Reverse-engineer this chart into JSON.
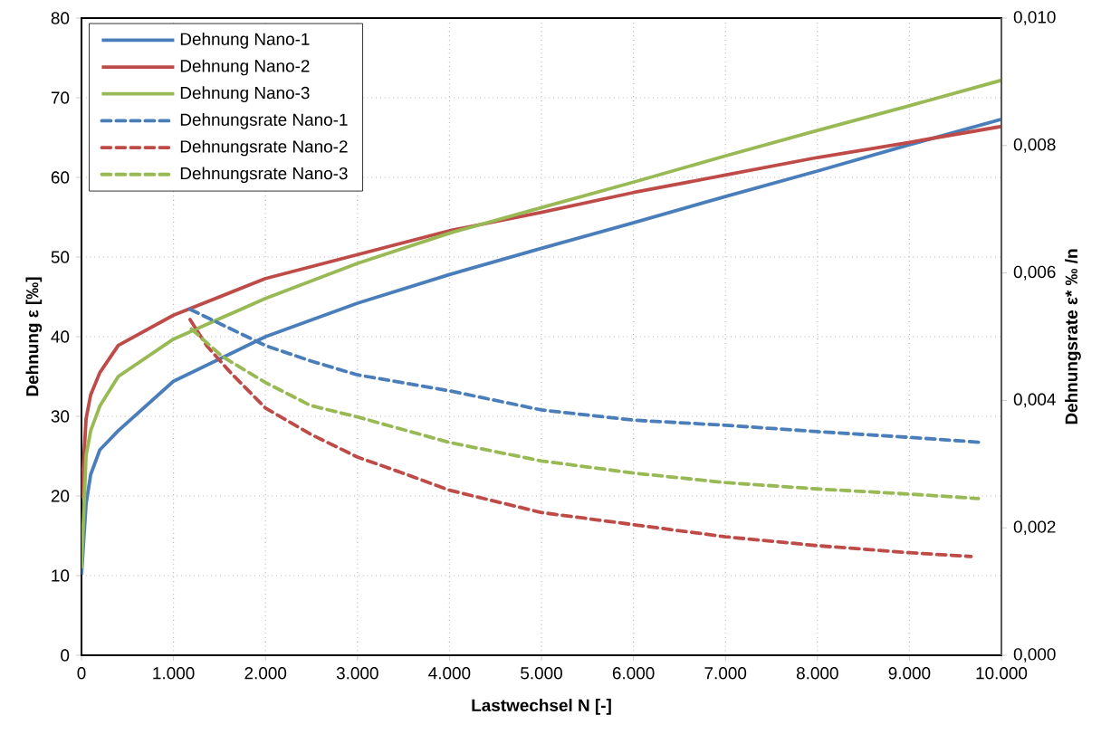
{
  "chart_data": {
    "type": "line",
    "xlabel": "Lastwechsel N [-]",
    "ylabel": "Dehnung ε [‰]",
    "y2label": "Dehnungsrate ε* ‰ /n",
    "xlim": [
      0,
      10000
    ],
    "xticks": [
      {
        "value": 0,
        "label": "0"
      },
      {
        "value": 1000,
        "label": "1.000"
      },
      {
        "value": 2000,
        "label": "2.000"
      },
      {
        "value": 3000,
        "label": "3.000"
      },
      {
        "value": 4000,
        "label": "4.000"
      },
      {
        "value": 5000,
        "label": "5.000"
      },
      {
        "value": 6000,
        "label": "6.000"
      },
      {
        "value": 7000,
        "label": "7.000"
      },
      {
        "value": 8000,
        "label": "8.000"
      },
      {
        "value": 9000,
        "label": "9.000"
      },
      {
        "value": 10000,
        "label": "10.000"
      }
    ],
    "ylim": [
      0,
      80
    ],
    "yticks": [
      0,
      10,
      20,
      30,
      40,
      50,
      60,
      70,
      80
    ],
    "y2lim": [
      0,
      0.01
    ],
    "y2ticks": [
      {
        "value": 0,
        "label": "0,000"
      },
      {
        "value": 0.002,
        "label": "0,002"
      },
      {
        "value": 0.004,
        "label": "0,004"
      },
      {
        "value": 0.006,
        "label": "0,006"
      },
      {
        "value": 0.008,
        "label": "0,008"
      },
      {
        "value": 0.01,
        "label": "0,010"
      }
    ],
    "grid": true,
    "legend": "top left",
    "marker": "none",
    "series": [
      {
        "name": "Dehnung Nano-1",
        "color": "#4a7ebb",
        "line_style": "solid",
        "x": [
          0,
          50,
          100,
          200,
          400,
          1000,
          2000,
          3000,
          4000,
          5000,
          6000,
          7000,
          8000,
          9000,
          10000
        ],
        "values": [
          10.1,
          19.0,
          22.7,
          25.8,
          28.2,
          34.4,
          40.0,
          44.2,
          47.8,
          51.1,
          54.3,
          57.6,
          60.8,
          64.1,
          67.3
        ]
      },
      {
        "name": "Dehnung Nano-2",
        "color": "#be4b48",
        "line_style": "solid",
        "x": [
          0,
          50,
          100,
          200,
          400,
          1000,
          2000,
          3000,
          4000,
          5000,
          6000,
          7000,
          8000,
          9000,
          10000
        ],
        "values": [
          19.7,
          29.7,
          32.7,
          35.5,
          38.9,
          42.7,
          47.3,
          50.3,
          53.3,
          55.6,
          58.1,
          60.3,
          62.5,
          64.4,
          66.4
        ]
      },
      {
        "name": "Dehnung Nano-3",
        "color": "#98b954",
        "line_style": "solid",
        "x": [
          0,
          50,
          100,
          200,
          400,
          1000,
          2000,
          3000,
          4000,
          5000,
          6000,
          7000,
          8000,
          9000,
          10000
        ],
        "values": [
          10.9,
          25.1,
          28.2,
          31.3,
          35.0,
          39.7,
          44.8,
          49.2,
          53.0,
          56.2,
          59.4,
          62.7,
          65.9,
          69.0,
          72.2
        ]
      },
      {
        "name": "Dehnungsrate Nano-1",
        "color": "#4a7ebb",
        "line_style": "dashed",
        "axis": "y2",
        "x": [
          1180,
          2000,
          2490,
          3000,
          4000,
          5000,
          6000,
          7000,
          8000,
          9000,
          9790
        ],
        "values": [
          0.00543,
          0.00486,
          0.00462,
          0.0044,
          0.00415,
          0.00385,
          0.00369,
          0.00361,
          0.00351,
          0.00342,
          0.00334
        ]
      },
      {
        "name": "Dehnungsrate Nano-2",
        "color": "#be4b48",
        "line_style": "dashed",
        "axis": "y2",
        "x": [
          1180,
          1360,
          1625,
          2000,
          2490,
          3000,
          3550,
          4000,
          5000,
          6000,
          7000,
          8000,
          9000,
          9670
        ],
        "values": [
          0.00527,
          0.00486,
          0.00443,
          0.00388,
          0.00347,
          0.00311,
          0.00283,
          0.00259,
          0.00224,
          0.00205,
          0.00186,
          0.00172,
          0.00161,
          0.00155
        ]
      },
      {
        "name": "Dehnungsrate Nano-3",
        "color": "#98b954",
        "line_style": "dashed",
        "axis": "y2",
        "x": [
          1195,
          1530,
          2000,
          2490,
          3000,
          4000,
          5000,
          6000,
          7000,
          8000,
          9000,
          9750
        ],
        "values": [
          0.00512,
          0.00469,
          0.00428,
          0.00392,
          0.00374,
          0.00334,
          0.00305,
          0.00286,
          0.00271,
          0.00261,
          0.00253,
          0.00246
        ]
      }
    ]
  }
}
